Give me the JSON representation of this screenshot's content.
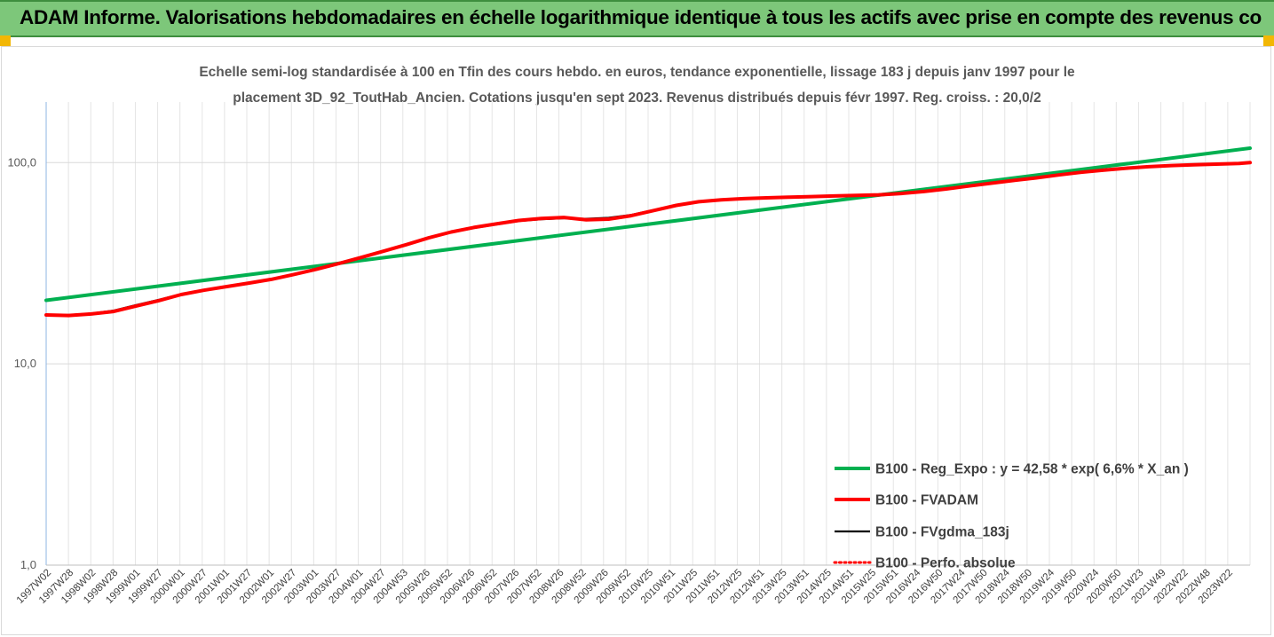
{
  "banner": {
    "title": "ADAM Informe. Valorisations hebdomadaires en échelle logarithmique identique à tous les actifs avec prise en compte des revenus co",
    "background": "#7dc77a"
  },
  "chart_data": {
    "type": "line",
    "title_line1": "Echelle semi-log standardisée à 100 en Tfin des cours hebdo. en euros, tendance exponentielle, lissage 183 j depuis janv 1997 pour le",
    "title_line2": "placement 3D_92_ToutHab_Ancien. Cotations jusqu'en sept 2023. Revenus distribués depuis févr 1997. Reg. croiss. : 20,0/2",
    "yscale": "log",
    "ylim": [
      1,
      200
    ],
    "yticks": [
      1,
      10,
      100
    ],
    "ytick_labels": [
      "1,0",
      "10,0",
      "100,0"
    ],
    "xlim": [
      1997.0,
      2023.75
    ],
    "categories": [
      "1997W02",
      "1997W28",
      "1998W02",
      "1998W28",
      "1999W01",
      "1999W27",
      "2000W01",
      "2000W27",
      "2001W01",
      "2001W27",
      "2002W01",
      "2002W27",
      "2003W01",
      "2003W27",
      "2004W01",
      "2004W27",
      "2004W53",
      "2005W26",
      "2005W52",
      "2006W26",
      "2006W52",
      "2007W26",
      "2007W52",
      "2008W26",
      "2008W52",
      "2009W26",
      "2009W52",
      "2010W25",
      "2010W51",
      "2011W25",
      "2011W51",
      "2012W25",
      "2012W51",
      "2013W25",
      "2013W51",
      "2014W25",
      "2014W51",
      "2015W25",
      "2015W51",
      "2016W24",
      "2016W50",
      "2017W24",
      "2017W50",
      "2018W24",
      "2018W50",
      "2019W24",
      "2019W50",
      "2020W24",
      "2020W50",
      "2021W23",
      "2021W49",
      "2022W22",
      "2022W48",
      "2023W22"
    ],
    "legend_position": "bottom-right",
    "series": [
      {
        "name": "B100 - Reg_Expo : y = 42,58 * exp( 6,6% *  X_an )",
        "color": "#00b050",
        "style": "solid",
        "x": [
          1997.0,
          2023.75
        ],
        "values": [
          20.7,
          118.0
        ]
      },
      {
        "name": "B100 - FVADAM",
        "color": "#ff0000",
        "style": "solid",
        "x": [
          1997.0,
          1997.5,
          1998.0,
          1998.5,
          1999.0,
          1999.5,
          2000.0,
          2000.5,
          2001.0,
          2001.5,
          2002.0,
          2002.5,
          2003.0,
          2003.5,
          2004.0,
          2004.5,
          2005.0,
          2005.5,
          2006.0,
          2006.5,
          2007.0,
          2007.5,
          2008.0,
          2008.5,
          2009.0,
          2009.5,
          2010.0,
          2010.5,
          2011.0,
          2011.5,
          2012.0,
          2012.5,
          2013.0,
          2013.5,
          2014.0,
          2014.5,
          2015.0,
          2015.5,
          2016.0,
          2016.5,
          2017.0,
          2017.5,
          2018.0,
          2018.5,
          2019.0,
          2019.5,
          2020.0,
          2020.5,
          2021.0,
          2021.5,
          2022.0,
          2022.5,
          2023.0,
          2023.5,
          2023.75
        ],
        "values": [
          17.5,
          17.4,
          17.7,
          18.2,
          19.4,
          20.6,
          22.1,
          23.2,
          24.2,
          25.2,
          26.3,
          27.8,
          29.5,
          31.5,
          33.8,
          36.3,
          39.1,
          42.3,
          45.2,
          47.6,
          49.6,
          51.6,
          52.8,
          53.4,
          52.0,
          52.4,
          54.5,
          57.8,
          61.3,
          63.9,
          65.3,
          66.2,
          66.8,
          67.3,
          67.8,
          68.3,
          68.7,
          69.2,
          70.2,
          71.8,
          74.0,
          76.5,
          79.0,
          81.5,
          84.0,
          86.8,
          89.5,
          91.8,
          93.8,
          95.4,
          96.7,
          97.6,
          98.3,
          99.0,
          100.0
        ]
      },
      {
        "name": "B100 - FVgdma_183j",
        "color": "#000000",
        "style": "solid",
        "x": [
          1997.0,
          1997.5,
          1998.0,
          1998.5,
          1999.0,
          1999.5,
          2000.0,
          2000.5,
          2001.0,
          2001.5,
          2002.0,
          2002.5,
          2003.0,
          2003.5,
          2004.0,
          2004.5,
          2005.0,
          2005.5,
          2006.0,
          2006.5,
          2007.0,
          2007.5,
          2008.0,
          2008.5,
          2009.0,
          2009.5,
          2010.0,
          2010.5,
          2011.0,
          2011.5,
          2012.0,
          2012.5,
          2013.0,
          2013.5,
          2014.0,
          2014.5,
          2015.0,
          2015.5,
          2016.0,
          2016.5,
          2017.0,
          2017.5,
          2018.0,
          2018.5,
          2019.0,
          2019.5,
          2020.0,
          2020.5,
          2021.0,
          2021.5,
          2022.0,
          2022.5,
          2023.0,
          2023.5,
          2023.75
        ],
        "values": [
          17.5,
          17.5,
          17.8,
          18.4,
          19.6,
          20.8,
          22.2,
          23.3,
          24.3,
          25.3,
          26.4,
          27.9,
          29.6,
          31.6,
          33.9,
          36.4,
          39.2,
          42.2,
          45.0,
          47.3,
          49.3,
          51.2,
          52.3,
          52.9,
          52.6,
          53.2,
          55.0,
          58.1,
          61.3,
          63.7,
          65.1,
          66.0,
          66.7,
          67.2,
          67.7,
          68.2,
          68.6,
          69.1,
          70.1,
          71.7,
          73.9,
          76.4,
          78.9,
          81.4,
          83.9,
          86.7,
          89.4,
          91.7,
          93.7,
          95.3,
          96.6,
          97.5,
          98.2,
          98.9,
          99.8
        ]
      },
      {
        "name": "B100 - Perfo. absolue",
        "color": "#ff0000",
        "style": "dotted",
        "x": [
          1997.0,
          1997.5,
          1998.0,
          1998.5,
          1999.0,
          1999.5,
          2000.0,
          2000.5,
          2001.0,
          2001.5,
          2002.0,
          2002.5,
          2003.0,
          2003.5,
          2004.0,
          2004.5,
          2005.0,
          2005.5,
          2006.0,
          2006.5,
          2007.0,
          2007.5,
          2008.0,
          2008.5,
          2009.0,
          2009.5,
          2010.0,
          2010.5,
          2011.0,
          2011.5,
          2012.0,
          2012.5,
          2013.0,
          2013.5,
          2014.0,
          2014.5,
          2015.0,
          2015.5,
          2016.0,
          2016.5,
          2017.0,
          2017.5,
          2018.0,
          2018.5,
          2019.0,
          2019.5,
          2020.0,
          2020.5,
          2021.0,
          2021.5,
          2022.0,
          2022.5,
          2023.0,
          2023.5,
          2023.75
        ],
        "values": [
          17.5,
          17.4,
          17.7,
          18.2,
          19.4,
          20.6,
          22.1,
          23.2,
          24.2,
          25.2,
          26.3,
          27.8,
          29.5,
          31.5,
          33.8,
          36.3,
          39.1,
          42.3,
          45.2,
          47.6,
          49.6,
          51.6,
          52.8,
          53.4,
          52.0,
          52.4,
          54.5,
          57.8,
          61.3,
          63.9,
          65.3,
          66.2,
          66.8,
          67.3,
          67.8,
          68.3,
          68.7,
          69.2,
          70.2,
          71.8,
          74.0,
          76.5,
          79.0,
          81.5,
          84.0,
          86.8,
          89.5,
          91.8,
          93.8,
          95.4,
          96.7,
          97.6,
          98.3,
          99.0,
          100.0
        ]
      }
    ]
  }
}
